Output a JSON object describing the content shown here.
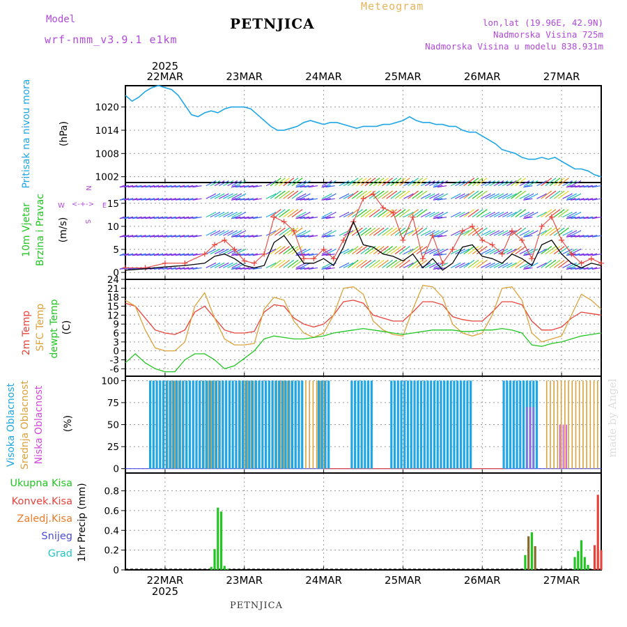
{
  "header": {
    "title": "PETNJICA",
    "meteogram": "Meteogram",
    "model_label": "Model",
    "model_name": "wrf-nmm_v3.9.1 e1km",
    "lonlat": "lon,lat (19.96E, 42.9N)",
    "altitude": "Nadmorska Visina 725m",
    "model_altitude": "Nadmorska Visina u modelu 838.931m",
    "footer": "PETNJICA",
    "watermark": "made by Angel"
  },
  "colors": {
    "pressure": "#1ea6e6",
    "temp2m": "#e8423a",
    "sfc_temp": "#dca23a",
    "dewpt": "#22c622",
    "wind_speed": "#000000",
    "gust": "#e8423a",
    "high_cloud": "#1ea6e6",
    "mid_cloud": "#dca23a",
    "low_cloud": "#d04ad8",
    "total_precip": "#22c622",
    "conv_precip": "#e8423a",
    "frozen_precip": "#e87c2a",
    "snow": "#4a4ae0",
    "graupel": "#22c6c6"
  },
  "time_axis": {
    "year": "2025",
    "days": [
      "22MAR",
      "23MAR",
      "24MAR",
      "25MAR",
      "26MAR",
      "27MAR"
    ],
    "start": "2025-03-21 12:00",
    "end": "2025-03-27 12:00"
  },
  "chart_data": [
    {
      "type": "line",
      "ylabel": [
        "Pritisak na nivou mora",
        "(hPa)"
      ],
      "yticks": [
        1002,
        1008,
        1014,
        1020
      ],
      "ylim": [
        1000.5,
        1025.5
      ],
      "grid": true,
      "series": [
        {
          "name": "Pritisak na nivou mora",
          "x_hours": [
            0,
            2,
            4,
            6,
            8,
            10,
            12,
            14,
            16,
            18,
            20,
            22,
            24,
            26,
            28,
            30,
            32,
            34,
            36,
            38,
            40,
            42,
            44,
            46,
            48,
            50,
            52,
            54,
            56,
            58,
            60,
            62,
            64,
            66,
            68,
            70,
            72,
            74,
            76,
            78,
            80,
            82,
            84,
            86,
            88,
            90,
            92,
            94,
            96,
            98,
            100,
            102,
            104,
            106,
            108,
            110,
            112,
            114,
            116,
            118,
            120,
            122,
            124,
            126,
            128,
            130,
            132,
            134,
            136,
            138,
            140,
            142,
            144
          ],
          "values": [
            1023,
            1021.5,
            1022.5,
            1024,
            1025,
            1025.5,
            1025,
            1024.5,
            1023,
            1020.5,
            1018,
            1017.5,
            1018.5,
            1019,
            1018.5,
            1019.5,
            1020,
            1020,
            1020,
            1019.5,
            1018,
            1016.5,
            1015,
            1014,
            1014,
            1014.5,
            1015,
            1016,
            1016.5,
            1016,
            1015.5,
            1016,
            1016,
            1015.5,
            1015,
            1014.5,
            1015,
            1015,
            1015,
            1015.5,
            1015.5,
            1016,
            1016.5,
            1017.5,
            1016.5,
            1016,
            1016,
            1015.5,
            1015.5,
            1015,
            1015,
            1014,
            1013.5,
            1013.5,
            1012.5,
            1011.5,
            1010.5,
            1009,
            1008.5,
            1008,
            1007,
            1006.5,
            1006.5,
            1007,
            1006.5,
            1007,
            1006,
            1005,
            1004,
            1004,
            1003.5,
            1002.5,
            1002
          ]
        }
      ]
    },
    {
      "type": "line",
      "ylabel": [
        "10m Vjetar",
        "Brzina i Pravac",
        "(m/s)"
      ],
      "compass": {
        "west": "W",
        "east": "E",
        "north": "N",
        "south": "S"
      },
      "yticks": [
        0,
        5,
        10,
        15
      ],
      "ylim": [
        -1.5,
        19.5
      ],
      "series": [
        {
          "name": "speed",
          "x_hours": [
            0,
            6,
            12,
            18,
            24,
            27,
            30,
            33,
            36,
            39,
            42,
            45,
            48,
            51,
            54,
            57,
            60,
            63,
            66,
            69,
            72,
            75,
            78,
            81,
            84,
            87,
            90,
            93,
            96,
            99,
            102,
            105,
            108,
            111,
            114,
            117,
            120,
            123,
            126,
            129,
            132,
            135,
            138,
            141,
            144
          ],
          "values": [
            0.5,
            0.8,
            1.2,
            1.5,
            2,
            3.5,
            4,
            3,
            1.5,
            1,
            1.5,
            6.5,
            8,
            5,
            2,
            2,
            3,
            1.5,
            5.5,
            11,
            6,
            5.5,
            4,
            3.5,
            2.5,
            4,
            1,
            3,
            0.5,
            2,
            5.5,
            6,
            3.5,
            3,
            2,
            4,
            3,
            1.5,
            6,
            7,
            4,
            2,
            1,
            2,
            1.5
          ]
        },
        {
          "name": "gust",
          "x_hours": [
            0,
            6,
            12,
            18,
            24,
            27,
            30,
            33,
            36,
            39,
            42,
            45,
            48,
            51,
            54,
            57,
            60,
            63,
            66,
            69,
            72,
            75,
            78,
            81,
            84,
            87,
            90,
            93,
            96,
            99,
            102,
            105,
            108,
            111,
            114,
            117,
            120,
            123,
            126,
            129,
            132,
            135,
            138,
            141,
            144
          ],
          "values": [
            1,
            1,
            2,
            2,
            4,
            6,
            7,
            5,
            2.5,
            2,
            4,
            12,
            11,
            9,
            3,
            3,
            5,
            3,
            7,
            11,
            16,
            17,
            14,
            13,
            7,
            12,
            3,
            8,
            2,
            5,
            9,
            10,
            7,
            6,
            4,
            9,
            7,
            3,
            10,
            12,
            7,
            4,
            2,
            3,
            2
          ]
        }
      ]
    },
    {
      "type": "line",
      "ylabel": [
        "2m Temp",
        "SFC Temp",
        "dewpt Temp",
        "(C)"
      ],
      "yticks": [
        -6,
        -3,
        0,
        3,
        6,
        9,
        12,
        15,
        18,
        21,
        24
      ],
      "ylim": [
        -8.5,
        24
      ],
      "series": [
        {
          "name": "2m Temp",
          "x_hours": [
            0,
            3,
            6,
            9,
            12,
            15,
            18,
            21,
            24,
            27,
            30,
            33,
            36,
            39,
            42,
            45,
            48,
            51,
            54,
            57,
            60,
            63,
            66,
            69,
            72,
            75,
            78,
            81,
            84,
            87,
            90,
            93,
            96,
            99,
            102,
            105,
            108,
            111,
            114,
            117,
            120,
            123,
            126,
            129,
            132,
            135,
            138,
            141,
            144
          ],
          "values": [
            16,
            15,
            11,
            7,
            6,
            5.5,
            7,
            13,
            15,
            11,
            7,
            6,
            6,
            6.5,
            13,
            15.5,
            15,
            11,
            9,
            8,
            9,
            12,
            16.5,
            17,
            16,
            12,
            11,
            10,
            10,
            13,
            16.5,
            16.5,
            15.5,
            11.5,
            10.5,
            10,
            10,
            13,
            16.5,
            16.5,
            15.5,
            10,
            7,
            7,
            8,
            11,
            13,
            12.5,
            12
          ]
        },
        {
          "name": "SFC Temp",
          "x_hours": [
            0,
            3,
            6,
            9,
            12,
            15,
            18,
            21,
            24,
            27,
            30,
            33,
            36,
            39,
            42,
            45,
            48,
            51,
            54,
            57,
            60,
            63,
            66,
            69,
            72,
            75,
            78,
            81,
            84,
            87,
            90,
            93,
            96,
            99,
            102,
            105,
            108,
            111,
            114,
            117,
            120,
            123,
            126,
            129,
            132,
            135,
            138,
            141,
            144
          ],
          "values": [
            17,
            15,
            7,
            1,
            0,
            0,
            3,
            15,
            19.5,
            11,
            4,
            2,
            2,
            2.5,
            14,
            18,
            17,
            10,
            6,
            4.5,
            6,
            12,
            21,
            21.5,
            19,
            10,
            7,
            5.5,
            5,
            14,
            22,
            21.5,
            18,
            9,
            6,
            5,
            6,
            12,
            21,
            21.5,
            17,
            6,
            3,
            4,
            5,
            12,
            19,
            17,
            14
          ]
        },
        {
          "name": "dewpt Temp",
          "x_hours": [
            0,
            3,
            6,
            9,
            12,
            15,
            18,
            21,
            24,
            27,
            30,
            33,
            36,
            39,
            42,
            45,
            48,
            51,
            54,
            57,
            60,
            63,
            66,
            69,
            72,
            75,
            78,
            81,
            84,
            87,
            90,
            93,
            96,
            99,
            102,
            105,
            108,
            111,
            114,
            117,
            120,
            123,
            126,
            129,
            132,
            135,
            138,
            141,
            144
          ],
          "values": [
            -4,
            -1,
            -4,
            -6,
            -7,
            -7,
            -3,
            -1,
            -1,
            -3,
            -6,
            -5,
            -2.5,
            0,
            4,
            5,
            4.5,
            4,
            4,
            4.5,
            5,
            6,
            6.5,
            7,
            7.5,
            7,
            6.5,
            6,
            5.5,
            6,
            6.5,
            7,
            7,
            7,
            6.5,
            6.5,
            7,
            7,
            7.5,
            7,
            6,
            2,
            1.5,
            2.5,
            3,
            4,
            5,
            5.5,
            6
          ]
        }
      ]
    },
    {
      "type": "bar",
      "ylabel": [
        "Visoka Oblacnost",
        "Srednja Oblacnost",
        "Niska Oblacnost",
        "(%)"
      ],
      "yticks": [
        0,
        25,
        50,
        75,
        100
      ],
      "ylim": [
        -5,
        105
      ],
      "series": [
        {
          "name": "Visoka Oblacnost",
          "segments": [
            [
              7.5,
              104.5,
              100
            ],
            [
              114.5,
              124.5,
              100
            ]
          ]
        },
        {
          "name": "Srednja Oblacnost",
          "segments": [
            [
              9.5,
              60.5,
              100
            ],
            [
              127.5,
              143.5,
              100
            ]
          ]
        },
        {
          "name": "Niska Oblacnost",
          "segments": [
            [
              121.5,
              123.5,
              70
            ],
            [
              131.5,
              133.5,
              50
            ]
          ]
        }
      ]
    },
    {
      "type": "bar",
      "ylabel": [
        "1hr Precip (mm)"
      ],
      "legend": [
        "Ukupna Kisa",
        "Konvek.Kisa",
        "Zaledj.Kisa",
        "Snijeg",
        "Grad"
      ],
      "yticks": [
        0,
        0.2,
        0.4,
        0.6,
        0.8
      ],
      "ylim": [
        0,
        0.98
      ],
      "series": [
        {
          "name": "Ukupna Kisa",
          "x_hours": [
            26,
            27,
            28,
            29,
            30,
            31,
            121,
            122,
            123,
            124,
            136,
            137,
            138,
            139,
            140
          ],
          "values": [
            0.03,
            0.21,
            0.63,
            0.59,
            0.04,
            0.01,
            0.15,
            0.34,
            0.38,
            0.24,
            0.13,
            0.19,
            0.3,
            0.13,
            0.05
          ]
        },
        {
          "name": "Konvek.Kisa",
          "x_hours": [
            142,
            143,
            144
          ],
          "values": [
            0.25,
            0.76,
            0.2
          ]
        }
      ]
    }
  ]
}
